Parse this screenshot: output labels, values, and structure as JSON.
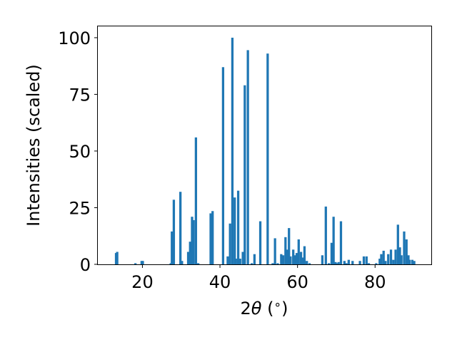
{
  "chart_data": {
    "type": "bar",
    "xlabel_main": "2",
    "xlabel_symbol": "θ",
    "xlabel_unit_open": " (",
    "xlabel_unit_degree": "∘",
    "xlabel_unit_close": ")",
    "ylabel": "Intensities (scaled)",
    "xlim": [
      8.5,
      94.5
    ],
    "ylim": [
      0,
      105
    ],
    "xticks": [
      20,
      40,
      60,
      80
    ],
    "yticks": [
      0,
      25,
      50,
      75,
      100
    ],
    "bar_width": 0.6,
    "color": "#1f77b4",
    "grid": false,
    "x": [
      13.2,
      13.5,
      18.2,
      19.8,
      20.1,
      27.3,
      27.6,
      28.1,
      29.8,
      30.2,
      31.8,
      32.3,
      32.8,
      33.2,
      33.8,
      34.4,
      37.6,
      38.1,
      40.8,
      42.0,
      42.6,
      43.2,
      43.8,
      44.1,
      44.7,
      45.2,
      45.9,
      46.4,
      47.2,
      48.2,
      48.9,
      50.4,
      52.3,
      53.6,
      54.2,
      54.9,
      55.8,
      56.3,
      56.9,
      57.4,
      57.8,
      58.2,
      58.9,
      59.4,
      59.8,
      60.3,
      60.9,
      61.3,
      61.8,
      62.4,
      63.1,
      66.4,
      67.3,
      68.1,
      68.8,
      69.3,
      69.8,
      70.2,
      70.6,
      71.2,
      72.1,
      72.6,
      73.2,
      74.2,
      76.1,
      77.1,
      77.8,
      78.4,
      80.3,
      81.2,
      81.6,
      82.2,
      82.7,
      83.4,
      84.1,
      84.7,
      85.3,
      85.9,
      86.4,
      86.8,
      87.5,
      88.1,
      88.6,
      88.9,
      89.6,
      90.1
    ],
    "values": [
      5,
      5.5,
      0.5,
      1.5,
      1.5,
      0.5,
      14.5,
      28.5,
      32,
      1.5,
      5.5,
      10,
      21,
      19.5,
      56,
      0.5,
      22.5,
      23.5,
      87,
      3.5,
      18,
      100,
      29.5,
      2.5,
      32.5,
      2.5,
      5.5,
      79,
      94.5,
      0.5,
      4.5,
      19,
      93,
      0.5,
      11.5,
      0.5,
      4.5,
      4,
      12,
      6.5,
      16,
      3.5,
      6.5,
      4,
      5,
      11,
      5.5,
      3,
      8,
      1.5,
      0.5,
      4,
      25.5,
      0.5,
      9.5,
      21,
      1,
      0.5,
      1,
      19,
      1.5,
      0.5,
      2,
      1.5,
      1.5,
      3.5,
      3.5,
      0.5,
      0.5,
      2.5,
      4.5,
      6,
      1.5,
      4.5,
      6.5,
      2,
      6.5,
      17.5,
      7.5,
      4,
      14.5,
      11,
      4,
      2,
      2,
      1.5
    ]
  }
}
